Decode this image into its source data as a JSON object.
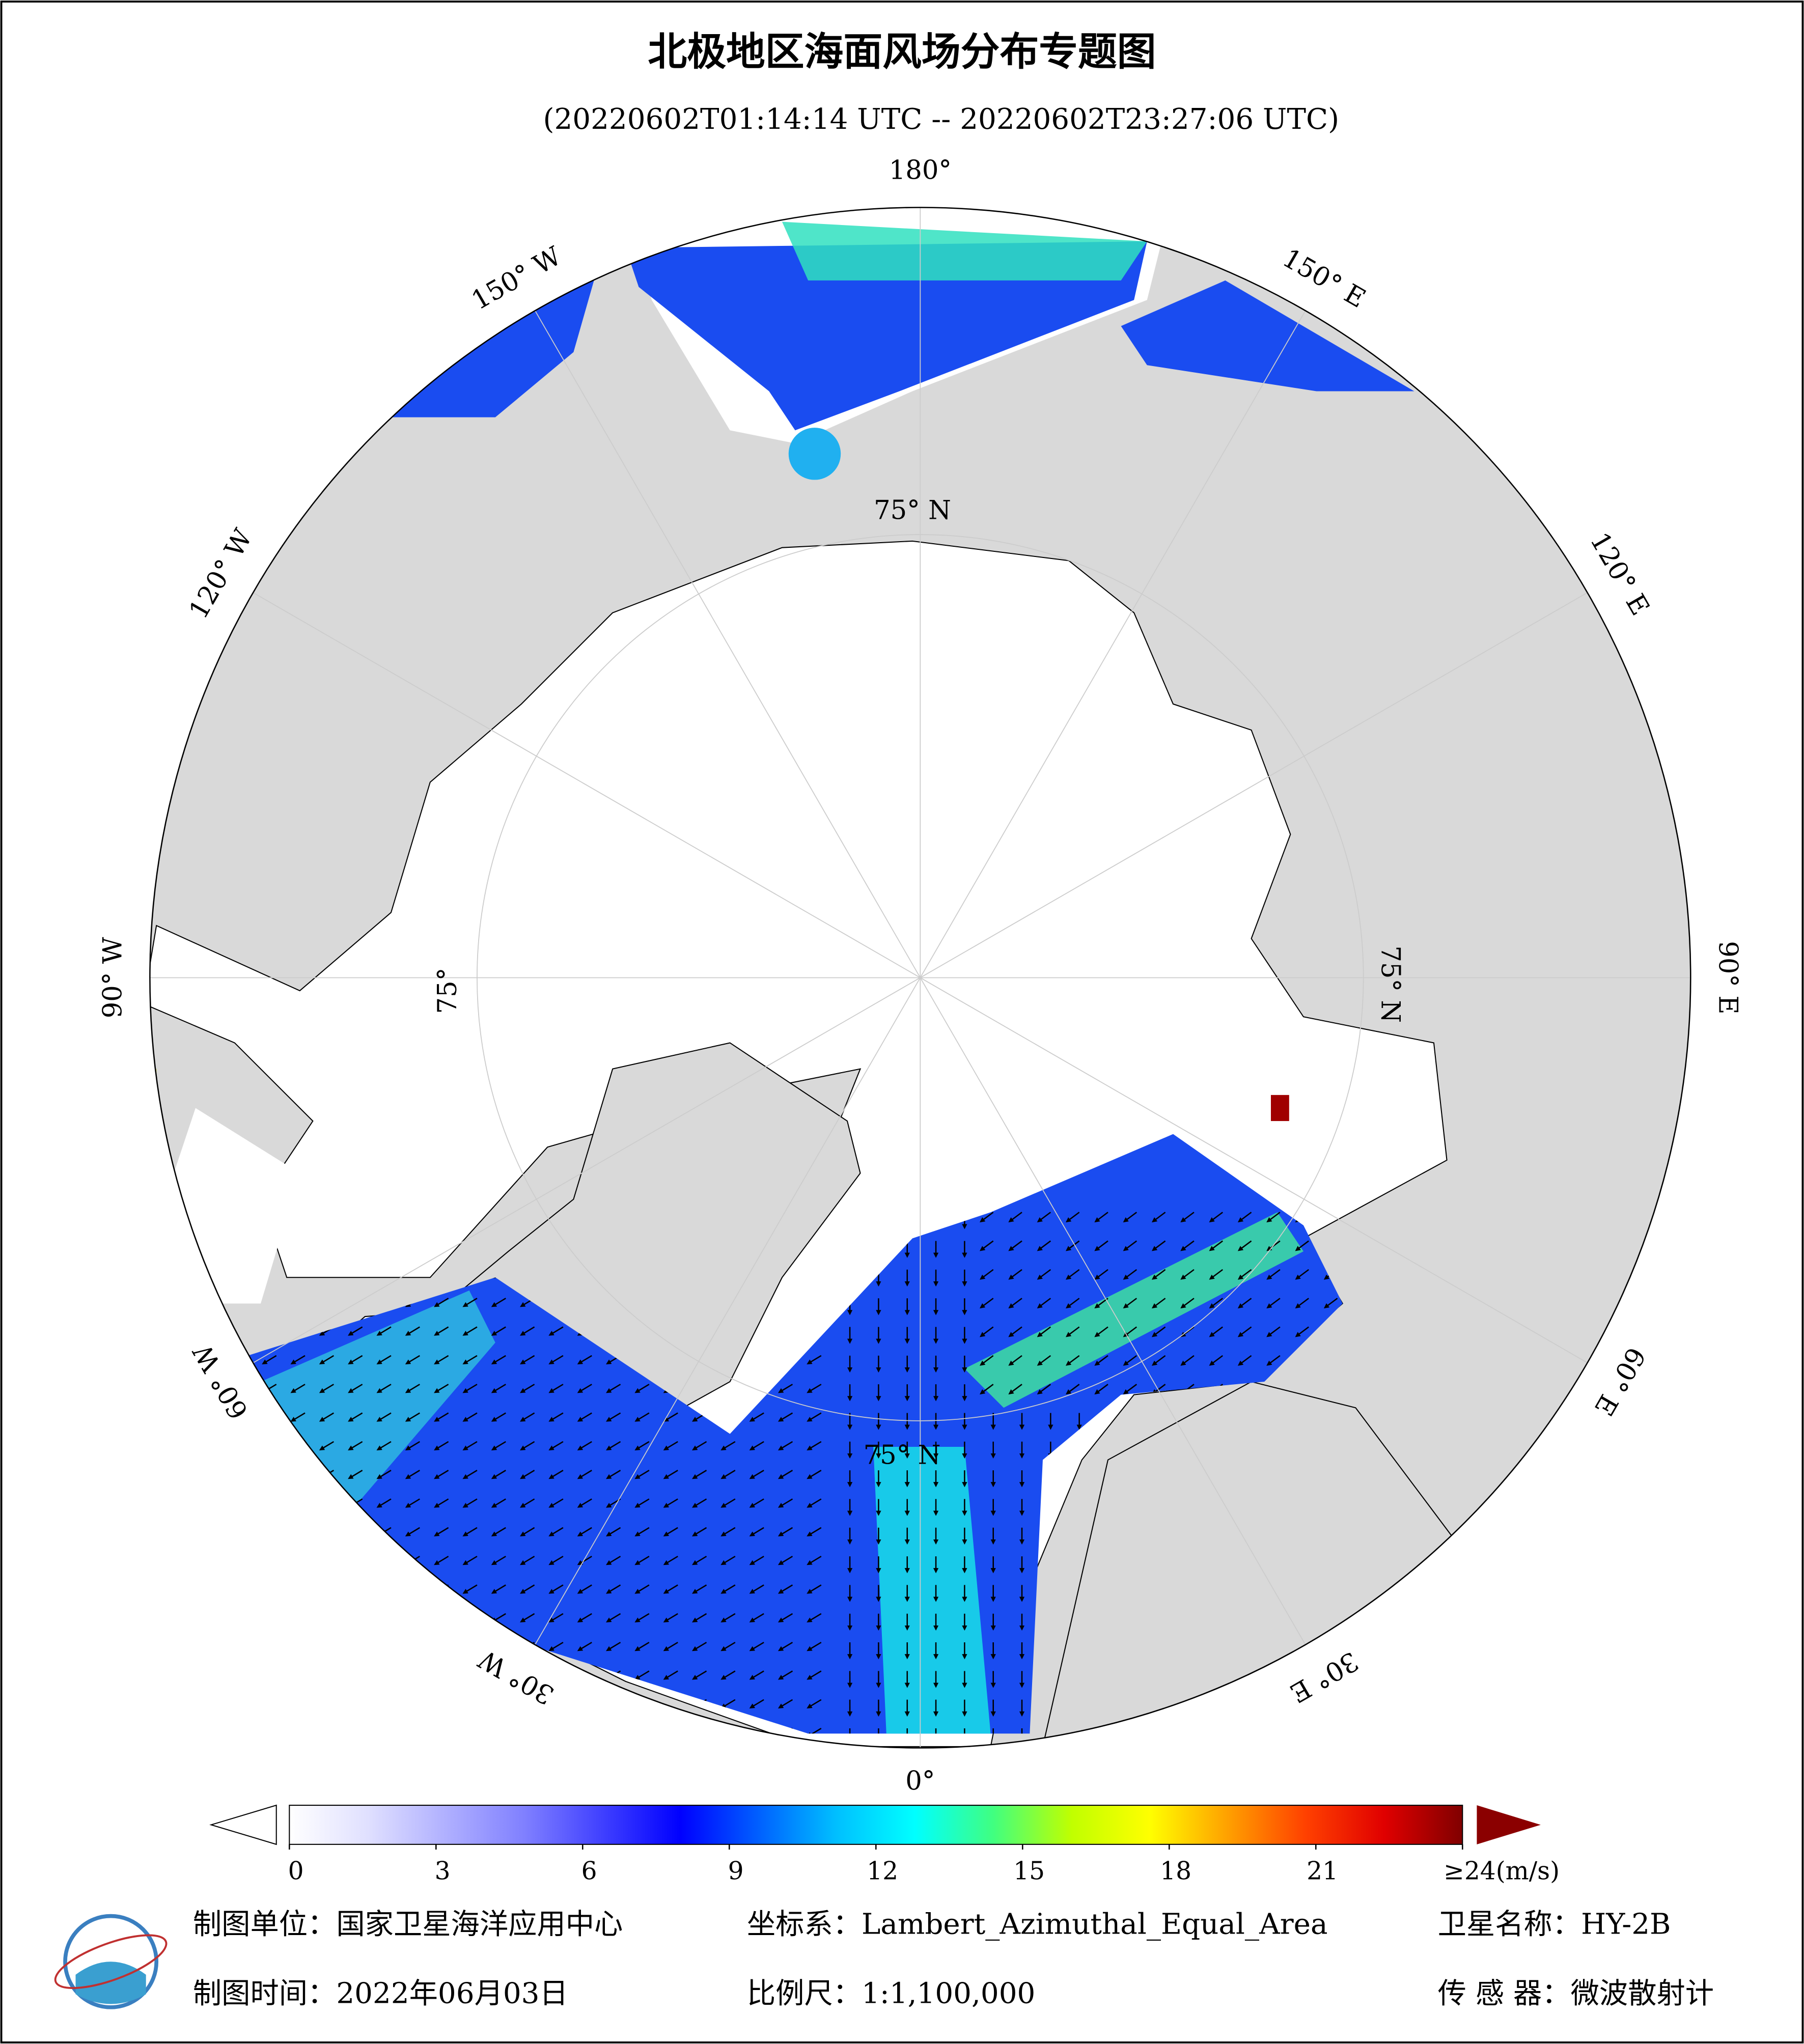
{
  "title": "北极地区海面风场分布专题图",
  "subtitle": "(20220602T01:14:14 UTC -- 20220602T23:27:06 UTC)",
  "map": {
    "longitude_labels": [
      "180°",
      "150° E",
      "120° E",
      "90° E",
      "60° E",
      "30° E",
      "0°",
      "30° W",
      "60° W",
      "90° W",
      "120° W",
      "150° W"
    ],
    "latitude_labels": [
      "75° N",
      "75° N",
      "75° N",
      "75°"
    ]
  },
  "colorbar": {
    "range": [
      0,
      24
    ],
    "ticks": [
      0,
      3,
      6,
      9,
      12,
      15,
      18,
      21,
      {
        "value": 24,
        "label": "≥24(m/s)"
      }
    ],
    "colors": [
      "#ffffff",
      "#e0e0ff",
      "#b0b0ff",
      "#8080ff",
      "#4040ff",
      "#0000ff",
      "#0060ff",
      "#00c0ff",
      "#00ffff",
      "#40ff80",
      "#c0ff00",
      "#ffff00",
      "#ffa000",
      "#ff4000",
      "#e00000",
      "#800000"
    ],
    "over_color": "#8b0000",
    "under_color": "#ffffff"
  },
  "footer": {
    "unit": "制图单位：国家卫星海洋应用中心",
    "coordinate_system": "坐标系：Lambert_Azimuthal_Equal_Area",
    "satellite": "卫星名称：HY-2B",
    "date": "制图时间：2022年06月03日",
    "scale": "比例尺：1:1,100,000",
    "sensor": "传 感 器：微波散射计"
  }
}
